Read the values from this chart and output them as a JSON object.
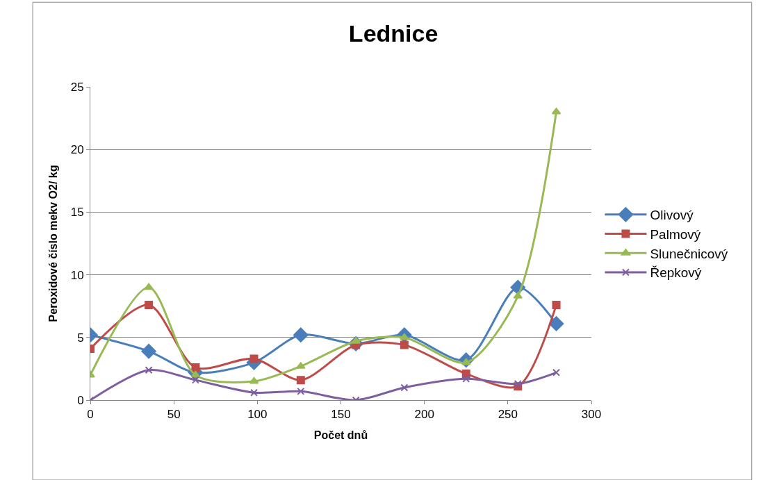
{
  "chart_data": {
    "type": "line",
    "title": "Lednice",
    "xlabel": "Počet dnů",
    "ylabel": "Peroxidové číslo mekv O2/ kg",
    "x": [
      0,
      35,
      63,
      98,
      126,
      159,
      188,
      225,
      256,
      279
    ],
    "series": [
      {
        "name": "Olivový",
        "color": "#4a7ebb",
        "marker": "diamond",
        "values": [
          5.2,
          3.9,
          2.2,
          3.0,
          5.2,
          4.5,
          5.2,
          3.2,
          9.0,
          6.1
        ]
      },
      {
        "name": "Palmový",
        "color": "#be4b48",
        "marker": "square",
        "values": [
          4.1,
          7.6,
          2.6,
          3.3,
          1.6,
          4.4,
          4.4,
          2.1,
          1.1,
          7.6
        ]
      },
      {
        "name": "Slunečnicový",
        "color": "#98b954",
        "marker": "triangle",
        "values": [
          2.0,
          9.0,
          2.0,
          1.5,
          2.7,
          4.7,
          5.0,
          3.0,
          8.3,
          23.0
        ]
      },
      {
        "name": "Řepkový",
        "color": "#7d5fa0",
        "marker": "cross",
        "values": [
          0,
          2.4,
          1.6,
          0.6,
          0.7,
          0,
          1.0,
          1.7,
          1.3,
          2.2
        ]
      }
    ],
    "xlim": [
      0,
      300
    ],
    "xticks": [
      0,
      50,
      100,
      150,
      200,
      250,
      300
    ],
    "ylim": [
      0,
      25
    ],
    "yticks": [
      0,
      5,
      10,
      15,
      20,
      25
    ],
    "grid": "y",
    "legend": "right",
    "line_style": "solid"
  }
}
